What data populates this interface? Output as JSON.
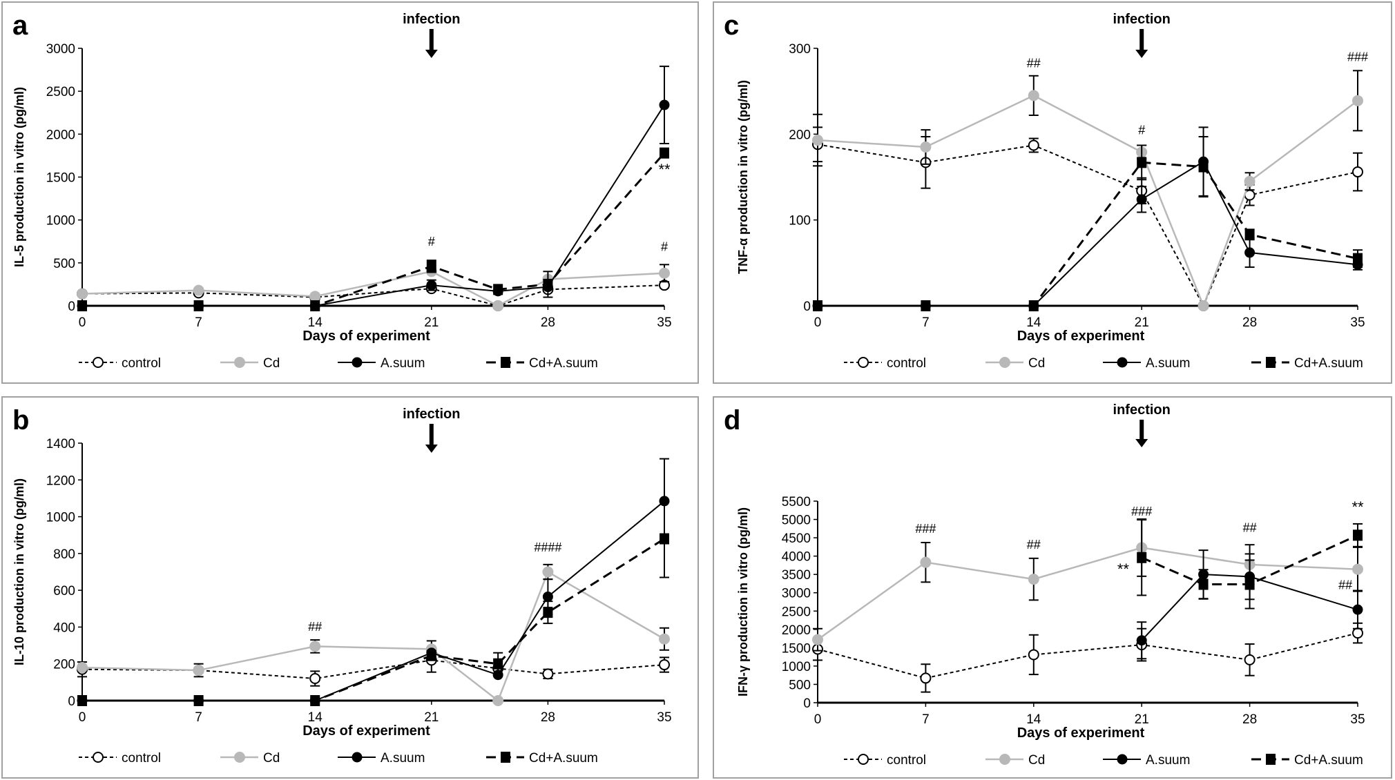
{
  "common": {
    "xlabel": "Days of experiment",
    "x_ticks": [
      0,
      7,
      14,
      21,
      28,
      35
    ],
    "annotation": "infection",
    "annotation_day": 21,
    "legend": [
      {
        "name": "control",
        "style": "dashed-black-open-circle"
      },
      {
        "name": "Cd",
        "style": "solid-gray-filled-circle"
      },
      {
        "name": "A.suum",
        "style": "solid-black-filled-circle"
      },
      {
        "name": "Cd+A.suum",
        "style": "long-dashed-black-square"
      }
    ],
    "colors": {
      "control": "#000000",
      "Cd": "#b8b8b8",
      "A.suum": "#000000",
      "Cd+A.suum": "#000000",
      "frame": "#a0a0a0"
    }
  },
  "chart_data": [
    {
      "panel": "a",
      "type": "line",
      "ylabel": "IL-5 production in vitro (pg/ml)",
      "xlabel": "Days of experiment",
      "ylim": [
        0,
        3000
      ],
      "y_ticks": [
        0,
        500,
        1000,
        1500,
        2000,
        2500,
        3000
      ],
      "x": [
        0,
        7,
        14,
        21,
        25,
        28,
        35
      ],
      "series": [
        {
          "name": "control",
          "values": [
            140,
            150,
            100,
            200,
            0,
            190,
            240
          ],
          "errors": [
            0,
            0,
            0,
            30,
            0,
            20,
            30
          ]
        },
        {
          "name": "Cd",
          "values": [
            140,
            180,
            110,
            400,
            0,
            310,
            380
          ],
          "errors": [
            0,
            0,
            0,
            0,
            0,
            0,
            100
          ]
        },
        {
          "name": "A.suum",
          "values": [
            0,
            0,
            0,
            240,
            170,
            220,
            2340
          ],
          "errors": [
            0,
            0,
            0,
            60,
            0,
            0,
            450
          ]
        },
        {
          "name": "Cd+A.suum",
          "values": [
            0,
            0,
            0,
            460,
            190,
            250,
            1780
          ],
          "errors": [
            0,
            0,
            0,
            70,
            0,
            150,
            0
          ]
        }
      ],
      "annotations": [
        {
          "text": "#",
          "x": 21,
          "y": 700
        },
        {
          "text": "**",
          "x": 35,
          "y": 1530
        },
        {
          "text": "#",
          "x": 35,
          "y": 640
        }
      ]
    },
    {
      "panel": "b",
      "type": "line",
      "ylabel": "IL-10 production in vitro (pg/ml)",
      "xlabel": "Days of experiment",
      "ylim": [
        0,
        1400
      ],
      "y_ticks": [
        0,
        200,
        400,
        600,
        800,
        1000,
        1200,
        1400
      ],
      "x": [
        0,
        7,
        14,
        21,
        25,
        28,
        35
      ],
      "series": [
        {
          "name": "control",
          "values": [
            170,
            165,
            120,
            220,
            175,
            145,
            195
          ],
          "errors": [
            40,
            35,
            40,
            65,
            0,
            25,
            40
          ]
        },
        {
          "name": "Cd",
          "values": [
            180,
            165,
            295,
            280,
            0,
            700,
            335
          ],
          "errors": [
            0,
            0,
            35,
            45,
            0,
            40,
            60
          ]
        },
        {
          "name": "A.suum",
          "values": [
            0,
            0,
            0,
            260,
            140,
            565,
            1085
          ],
          "errors": [
            0,
            0,
            0,
            0,
            0,
            95,
            230
          ]
        },
        {
          "name": "Cd+A.suum",
          "values": [
            0,
            0,
            0,
            245,
            200,
            480,
            880
          ],
          "errors": [
            0,
            0,
            0,
            0,
            60,
            60,
            210
          ]
        }
      ],
      "annotations": [
        {
          "text": "##",
          "x": 14,
          "y": 380
        },
        {
          "text": "####",
          "x": 28,
          "y": 810
        }
      ]
    },
    {
      "panel": "c",
      "type": "line",
      "ylabel": "TNF-α production in vitro (pg/ml)",
      "xlabel": "Days of experiment",
      "ylim": [
        0,
        300
      ],
      "y_ticks": [
        0,
        100,
        200,
        300
      ],
      "x": [
        0,
        7,
        14,
        21,
        25,
        28,
        35
      ],
      "series": [
        {
          "name": "control",
          "values": [
            188,
            167,
            187,
            134,
            0,
            129,
            156
          ],
          "errors": [
            20,
            30,
            8,
            15,
            0,
            12,
            22
          ]
        },
        {
          "name": "Cd",
          "values": [
            193,
            185,
            245,
            179,
            0,
            145,
            239
          ],
          "errors": [
            30,
            20,
            23,
            8,
            0,
            10,
            35
          ]
        },
        {
          "name": "A.suum",
          "values": [
            0,
            0,
            0,
            124,
            168,
            62,
            48
          ],
          "errors": [
            0,
            0,
            0,
            15,
            40,
            17,
            6
          ]
        },
        {
          "name": "Cd+A.suum",
          "values": [
            0,
            0,
            0,
            167,
            162,
            83,
            55
          ],
          "errors": [
            0,
            0,
            0,
            20,
            35,
            6,
            10
          ]
        }
      ],
      "annotations": [
        {
          "text": "##",
          "x": 14,
          "y": 278
        },
        {
          "text": "#",
          "x": 21,
          "y": 200
        },
        {
          "text": "###",
          "x": 35,
          "y": 285
        }
      ]
    },
    {
      "panel": "d",
      "type": "line",
      "ylabel": "IFN-γ production in vitro (pg/ml)",
      "xlabel": "Days of experiment",
      "ylim": [
        0,
        5500
      ],
      "y_ticks": [
        0,
        500,
        1000,
        1500,
        2000,
        2500,
        3000,
        3500,
        4000,
        4500,
        5000,
        5500
      ],
      "x": [
        0,
        7,
        14,
        21,
        25,
        28,
        35
      ],
      "series": [
        {
          "name": "control",
          "values": [
            1460,
            670,
            1310,
            1580,
            null,
            1170,
            1900
          ],
          "errors": [
            300,
            380,
            540,
            440,
            0,
            430,
            270
          ]
        },
        {
          "name": "Cd",
          "values": [
            1720,
            3830,
            3370,
            4230,
            null,
            3770,
            3640
          ],
          "errors": [
            300,
            540,
            570,
            780,
            0,
            540,
            600
          ]
        },
        {
          "name": "A.suum",
          "values": [
            null,
            null,
            null,
            1700,
            3500,
            3440,
            2540
          ],
          "errors": [
            0,
            0,
            0,
            500,
            660,
            620,
            520
          ]
        },
        {
          "name": "Cd+A.suum",
          "values": [
            null,
            null,
            null,
            3960,
            3230,
            3230,
            4570
          ],
          "errors": [
            0,
            0,
            0,
            1030,
            400,
            660,
            310
          ]
        }
      ],
      "annotations": [
        {
          "text": "###",
          "x": 7,
          "y": 4630
        },
        {
          "text": "##",
          "x": 14,
          "y": 4200
        },
        {
          "text": "###",
          "x": 21,
          "y": 5100
        },
        {
          "text": "**",
          "x": 19.8,
          "y": 3500
        },
        {
          "text": "##",
          "x": 28,
          "y": 4660
        },
        {
          "text": "**",
          "x": 35,
          "y": 5200
        },
        {
          "text": "##",
          "x": 34.2,
          "y": 3100
        }
      ]
    }
  ]
}
